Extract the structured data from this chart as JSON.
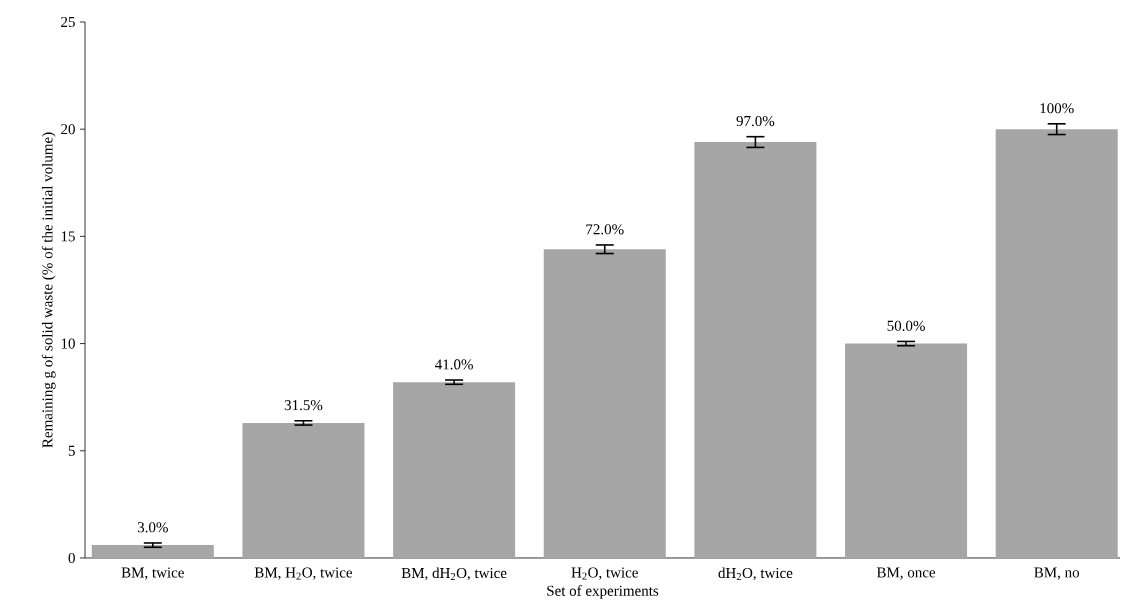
{
  "chart_data": {
    "type": "bar",
    "categories": [
      "BM, twice",
      "BM, H$_{2}$O, twice",
      "BM, dH$_{2}$O, twice",
      "H$_{2}$O, twice",
      "dH$_{2}$O, twice",
      "BM, once",
      "BM, no"
    ],
    "values": [
      0.6,
      6.3,
      8.2,
      14.4,
      19.4,
      10.0,
      20.0
    ],
    "errors": [
      0.1,
      0.1,
      0.1,
      0.2,
      0.25,
      0.1,
      0.25
    ],
    "annotations": [
      {
        "text": "3.0%",
        "x": "BM, twice",
        "y": 0.6
      },
      {
        "text": "31.5%",
        "x": "BM, H$_{2}$O, twice",
        "y": 6.3
      },
      {
        "text": "41.0%",
        "x": "BM, dH$_{2}$O, twice",
        "y": 8.2
      },
      {
        "text": "72.0%",
        "x": "H$_{2}$O, twice",
        "y": 14.4
      },
      {
        "text": "97.0%",
        "x": "dH$_{2}$O, twice",
        "y": 19.4
      },
      {
        "text": "50.0%",
        "x": "BM, once",
        "y": 10.0
      },
      {
        "text": "100%",
        "x": "BM, no",
        "y": 20.0
      }
    ],
    "color": "#a6a6a6",
    "ylim": [
      0,
      25
    ],
    "yticks": [
      0,
      5,
      10,
      15,
      20,
      25
    ],
    "xlabel": "Set of experiments",
    "ylabel": "Remaining g of solid waste (% of the initial volume)"
  }
}
